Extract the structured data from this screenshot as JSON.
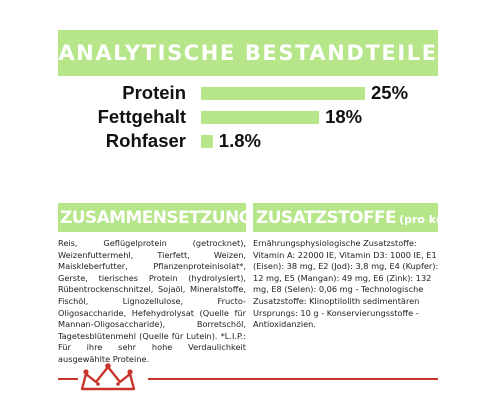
{
  "banner": {
    "title": "ANALYTISCHE BESTANDTEILE",
    "color": "#b6e58a"
  },
  "chart_data": {
    "type": "bar",
    "orientation": "horizontal",
    "categories": [
      "Protein",
      "Fettgehalt",
      "Rohfaser"
    ],
    "values": [
      25,
      18,
      1.8
    ],
    "value_labels": [
      "25%",
      "18%",
      "1.8%"
    ],
    "bar_color": "#b6e58a",
    "xlim": [
      0,
      25
    ],
    "grid": false
  },
  "composition": {
    "heading": "ZUSAMMENSETZUNG",
    "text": "Reis, Geflügelprotein (getrocknet), Weizenfuttermehl, Tierfett, Weizen, Maiskleberfutter, Pflanzenproteinisolat*, Gerste, tierisches Protein (hydrolysiert), Rübentrockenschnitzel, Sojaöl, Mineralstoffe, Fischöl, Lignozellulose, Fructo-Oligosaccharide, Hefehydrolysat (Quelle für Mannan-Oligosaccharide), Borretschöl, Tagetesblütenmehl (Quelle für Lutein). *L.I.P.: Für ihre sehr hohe Verdaulichkeit ausgewählte Proteine."
  },
  "additives": {
    "heading": "ZUSATZSTOFFE",
    "unit": "(pro kg)",
    "text": "Ernährungsphysiologische Zusatzstoffe: Vitamin A: 22000 IE, Vitamin D3: 1000 IE, E1 (Eisen): 38 mg, E2 (Jod): 3,8 mg, E4 (Kupfer): 12 mg, E5 (Mangan): 49 mg, E6 (Zink): 132 mg, E8 (Selen): 0,06 mg - Technologische Zusatzstoffe: Klinoptilolith sedimentären Ursprungs: 10 g - Konservierungsstoffe - Antioxidanzien."
  },
  "footer": {
    "logo_icon": "crown-icon",
    "line_color": "#c9352b"
  }
}
